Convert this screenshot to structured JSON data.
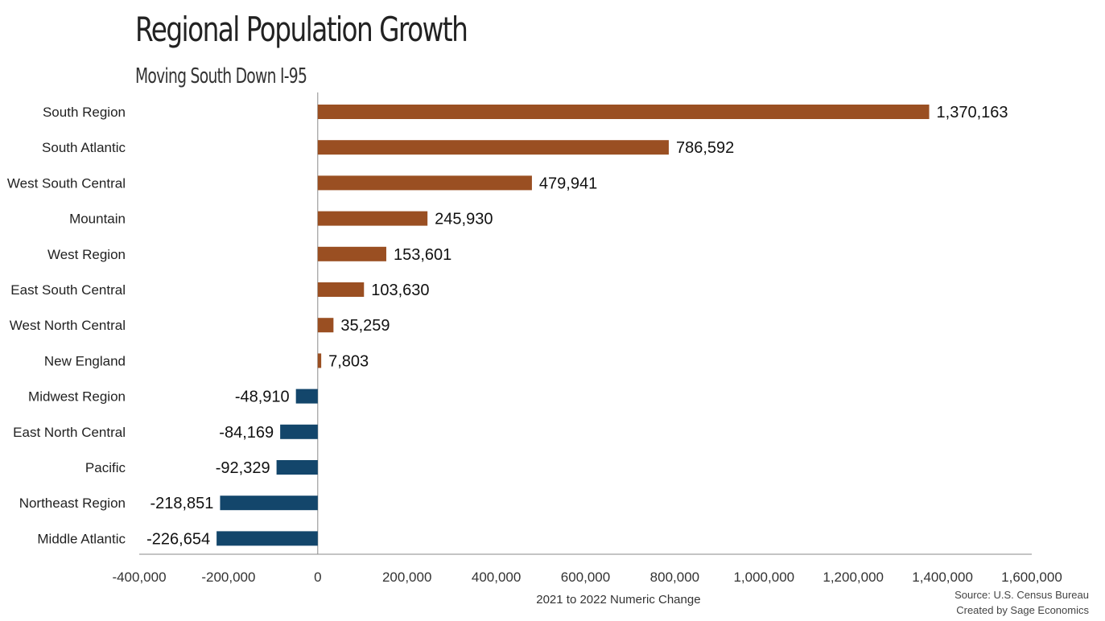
{
  "chart_data": {
    "type": "bar",
    "orientation": "horizontal",
    "title": "Regional Population Growth",
    "subtitle": "Moving South Down I-95",
    "xlabel": "2021 to 2022 Numeric Change",
    "ylabel": "",
    "xlim": [
      -400000,
      1600000
    ],
    "x_ticks": [
      -400000,
      -200000,
      0,
      200000,
      400000,
      600000,
      800000,
      1000000,
      1200000,
      1400000,
      1600000
    ],
    "x_tick_labels": [
      "-400,000",
      "-200,000",
      "0",
      "200,000",
      "400,000",
      "600,000",
      "800,000",
      "1,000,000",
      "1,200,000",
      "1,400,000",
      "1,600,000"
    ],
    "grid": false,
    "categories": [
      "South Region",
      "South Atlantic",
      "West South Central",
      "Mountain",
      "West Region",
      "East South Central",
      "West North Central",
      "New England",
      "Midwest Region",
      "East North Central",
      "Pacific",
      "Northeast Region",
      "Middle Atlantic"
    ],
    "values": [
      1370163,
      786592,
      479941,
      245930,
      153601,
      103630,
      35259,
      7803,
      -48910,
      -84169,
      -92329,
      -218851,
      -226654
    ],
    "data_labels": [
      "1,370,163",
      "786,592",
      "479,941",
      "245,930",
      "153,601",
      "103,630",
      "35,259",
      "7,803",
      "-48,910",
      "-84,169",
      "-92,329",
      "-218,851",
      "-226,654"
    ],
    "colors": {
      "positive": "#9a4f22",
      "negative": "#13466b"
    }
  },
  "footer": {
    "source": "Source: U.S. Census Bureau",
    "credit": "Created by Sage Economics"
  }
}
